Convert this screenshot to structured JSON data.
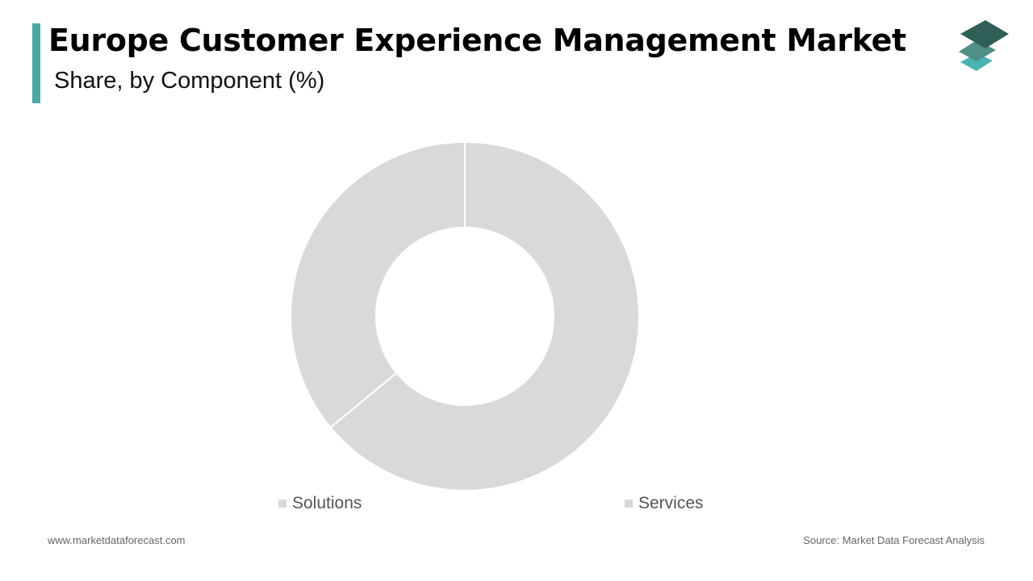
{
  "header": {
    "title": "Europe Customer Experience Management Market",
    "subtitle": "Share, by Component (%)"
  },
  "brand": {
    "logo_icon": "stacked-layers-logo-icon",
    "accent_color": "#4aa8a8",
    "logo_colors": [
      "#2f5f57",
      "#4f8f86",
      "#4ab3b0"
    ]
  },
  "chart_data": {
    "type": "pie",
    "donut": true,
    "title": "Europe Customer Experience Management Market",
    "subtitle": "Share, by Component (%)",
    "categories": [
      "Solutions",
      "Services"
    ],
    "values": [
      64,
      36
    ],
    "colors": [
      "#d9d9d9",
      "#d9d9d9"
    ],
    "legend_position": "bottom",
    "data_labels": false
  },
  "legend": [
    {
      "label": "Solutions",
      "color": "#d9d9d9"
    },
    {
      "label": "Services",
      "color": "#d9d9d9"
    }
  ],
  "footer": {
    "website": "www.marketdataforecast.com",
    "source": "Source: Market Data Forecast Analysis"
  }
}
